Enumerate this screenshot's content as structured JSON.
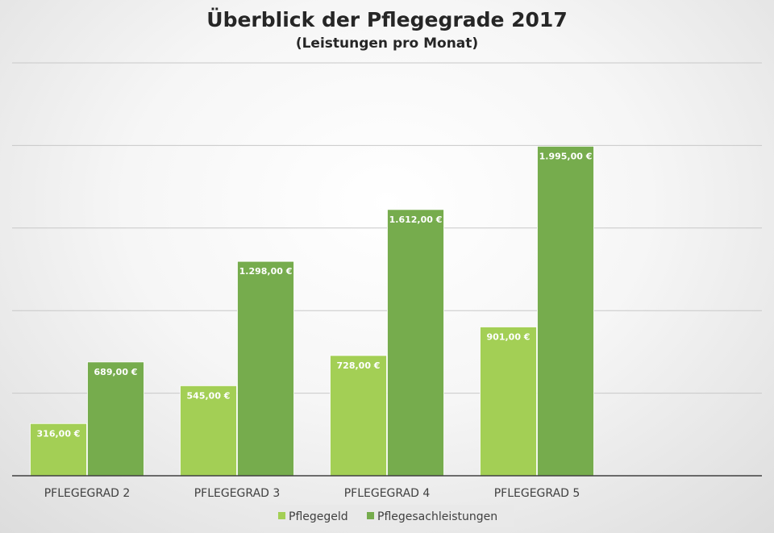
{
  "chart_data": {
    "type": "bar",
    "title": "Überblick der Pflegegrade 2017",
    "subtitle": "(Leistungen pro Monat)",
    "categories": [
      "PFLEGEGRAD 2",
      "PFLEGEGRAD 3",
      "PFLEGEGRAD 4",
      "PFLEGEGRAD 5"
    ],
    "series": [
      {
        "name": "Pflegegeld",
        "color": "#a3cf55",
        "values": [
          316,
          545,
          728,
          901
        ],
        "labels": [
          "316,00 €",
          "545,00 €",
          "728,00 €",
          "901,00 €"
        ]
      },
      {
        "name": "Pflegesachleistungen",
        "color": "#76ac4d",
        "values": [
          689,
          1298,
          1612,
          1995
        ],
        "labels": [
          "689,00 €",
          "1.298,00 €",
          "1.612,00 €",
          "1.995,00 €"
        ]
      }
    ],
    "ylim": [
      0,
      2500
    ],
    "gridlines": true,
    "y_axis_labels_visible": false,
    "legend_position": "bottom"
  }
}
